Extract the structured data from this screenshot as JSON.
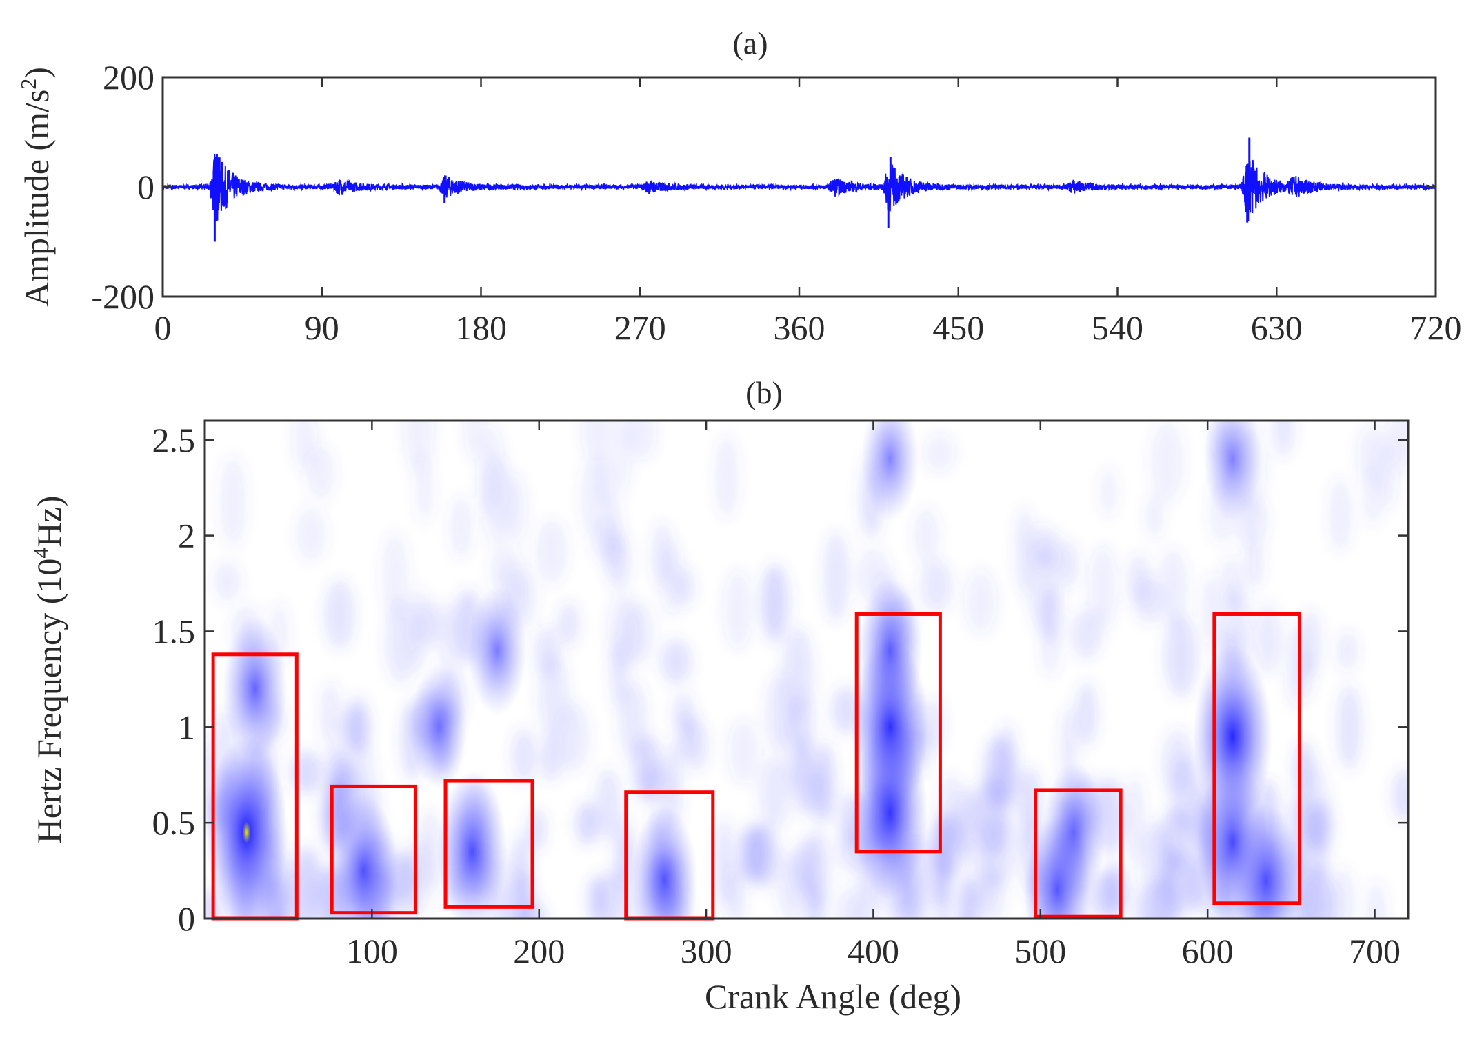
{
  "chart_data": [
    {
      "type": "line",
      "panel_label": "(a)",
      "ylabel": "Amplitude (m/s²)",
      "ylabel_parts": {
        "base": "Amplitude (m/s",
        "sup": "2",
        "tail": ")"
      },
      "xlabel": "",
      "xlim": [
        0,
        720
      ],
      "ylim": [
        -200,
        200
      ],
      "xticks": [
        0,
        90,
        180,
        270,
        360,
        450,
        540,
        630,
        720
      ],
      "yticks": [
        200,
        0,
        -200
      ],
      "color": "#1010ff",
      "background_noise_amplitude": 4,
      "bursts": [
        {
          "center": 30,
          "amplitude": 65,
          "min": -100,
          "max": 60
        },
        {
          "center": 100,
          "amplitude": 12
        },
        {
          "center": 160,
          "amplitude": 18,
          "min": -30
        },
        {
          "center": 275,
          "amplitude": 10
        },
        {
          "center": 380,
          "amplitude": 14
        },
        {
          "center": 411,
          "amplitude": 45,
          "min": -75,
          "max": 55
        },
        {
          "center": 515,
          "amplitude": 10
        },
        {
          "center": 614,
          "amplitude": 60,
          "min": -65,
          "max": 90
        },
        {
          "center": 640,
          "amplitude": 15
        }
      ],
      "grid": false
    },
    {
      "type": "heatmap",
      "panel_label": "(b)",
      "xlabel": "Crank Angle (deg)",
      "ylabel": "Hertz Frequency (10⁴Hz)",
      "ylabel_parts": {
        "base": "Hertz Frequency (10",
        "sup": "4",
        "tail": "Hz)"
      },
      "xlim": [
        0,
        720
      ],
      "ylim": [
        0,
        2.6
      ],
      "xticks": [
        100,
        200,
        300,
        400,
        500,
        600,
        700
      ],
      "yticks": [
        0,
        0.5,
        1,
        1.5,
        2,
        2.5
      ],
      "ytick_labels": [
        "0",
        "0.5",
        "1",
        "1.5",
        "2",
        "2.5"
      ],
      "colormap": "white-to-blue",
      "hot_spots": [
        {
          "x": 25,
          "y": 0.45,
          "intensity": 1.0,
          "peak_color": "#e0e000"
        },
        {
          "x": 30,
          "y": 1.2,
          "intensity": 0.5
        },
        {
          "x": 95,
          "y": 0.25,
          "intensity": 0.6
        },
        {
          "x": 160,
          "y": 0.35,
          "intensity": 0.65
        },
        {
          "x": 175,
          "y": 1.4,
          "intensity": 0.35
        },
        {
          "x": 140,
          "y": 1.0,
          "intensity": 0.3
        },
        {
          "x": 275,
          "y": 0.2,
          "intensity": 0.55
        },
        {
          "x": 410,
          "y": 1.0,
          "intensity": 0.85
        },
        {
          "x": 410,
          "y": 0.55,
          "intensity": 0.8
        },
        {
          "x": 410,
          "y": 1.4,
          "intensity": 0.5
        },
        {
          "x": 520,
          "y": 0.45,
          "intensity": 0.45
        },
        {
          "x": 510,
          "y": 0.15,
          "intensity": 0.55
        },
        {
          "x": 615,
          "y": 0.95,
          "intensity": 0.9
        },
        {
          "x": 615,
          "y": 0.4,
          "intensity": 0.7
        },
        {
          "x": 635,
          "y": 0.2,
          "intensity": 0.6
        },
        {
          "x": 615,
          "y": 2.4,
          "intensity": 0.3
        },
        {
          "x": 410,
          "y": 2.4,
          "intensity": 0.3
        }
      ],
      "annotations": [
        {
          "type": "rect",
          "x0": 5,
          "x1": 55,
          "y0": 0,
          "y1": 1.38,
          "color": "#ff0000"
        },
        {
          "type": "rect",
          "x0": 76,
          "x1": 126,
          "y0": 0.03,
          "y1": 0.69,
          "color": "#ff0000"
        },
        {
          "type": "rect",
          "x0": 144,
          "x1": 196,
          "y0": 0.06,
          "y1": 0.72,
          "color": "#ff0000"
        },
        {
          "type": "rect",
          "x0": 252,
          "x1": 304,
          "y0": 0,
          "y1": 0.66,
          "color": "#ff0000"
        },
        {
          "type": "rect",
          "x0": 390,
          "x1": 440,
          "y0": 0.35,
          "y1": 1.59,
          "color": "#ff0000"
        },
        {
          "type": "rect",
          "x0": 497,
          "x1": 548,
          "y0": 0.01,
          "y1": 0.67,
          "color": "#ff0000"
        },
        {
          "type": "rect",
          "x0": 604,
          "x1": 655,
          "y0": 0.08,
          "y1": 1.59,
          "color": "#ff0000"
        }
      ],
      "grid": false
    }
  ]
}
